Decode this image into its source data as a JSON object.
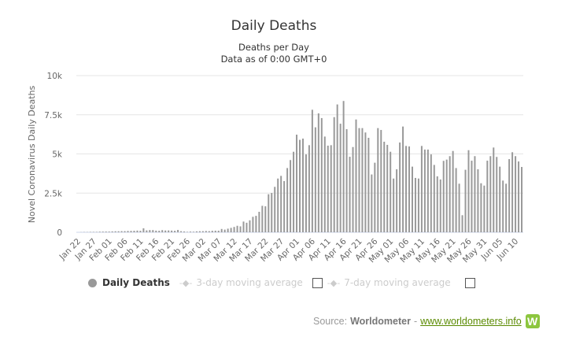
{
  "chart_data": {
    "type": "bar",
    "title": "Daily Deaths",
    "subtitle_lines": [
      "Deaths per Day",
      "Data as of 0:00 GMT+0"
    ],
    "ylabel": "Novel Coronavirus Daily Deaths",
    "xlabel": "",
    "ylim": [
      0,
      10000
    ],
    "y_tick_labels": [
      "0",
      "2.5k",
      "5k",
      "7.5k",
      "10k"
    ],
    "y_tick_values": [
      0,
      2500,
      5000,
      7500,
      10000
    ],
    "grid": true,
    "start_date": "Jan 22",
    "x_tick_every": 5,
    "x_tick_labels": [
      "Jan 22",
      "Jan 27",
      "Feb 01",
      "Feb 06",
      "Feb 11",
      "Feb 16",
      "Feb 21",
      "Feb 26",
      "Mar 02",
      "Mar 07",
      "Mar 12",
      "Mar 17",
      "Mar 22",
      "Mar 27",
      "Apr 01",
      "Apr 06",
      "Apr 11",
      "Apr 16",
      "Apr 21",
      "Apr 26",
      "May 01",
      "May 06",
      "May 11",
      "May 16",
      "May 21",
      "May 26",
      "May 31",
      "Jun 05",
      "Jun 10"
    ],
    "series": [
      {
        "name": "Daily Deaths",
        "color": "#999999",
        "values": [
          0,
          8,
          16,
          15,
          24,
          26,
          26,
          38,
          43,
          46,
          45,
          57,
          64,
          66,
          73,
          73,
          86,
          89,
          97,
          108,
          97,
          254,
          121,
          143,
          142,
          106,
          98,
          139,
          115,
          118,
          109,
          97,
          150,
          71,
          52,
          29,
          44,
          37,
          58,
          67,
          72,
          84,
          74,
          97,
          103,
          102,
          212,
          171,
          231,
          282,
          341,
          415,
          378,
          685,
          610,
          765,
          988,
          1050,
          1307,
          1690,
          1660,
          2430,
          2510,
          2900,
          3430,
          3600,
          3270,
          4100,
          4610,
          5140,
          6230,
          5900,
          5980,
          4970,
          5560,
          7820,
          6700,
          7590,
          7290,
          6110,
          5530,
          5560,
          7350,
          8160,
          6930,
          8380,
          6580,
          4820,
          5440,
          7200,
          6650,
          6650,
          6370,
          6030,
          3690,
          4440,
          6650,
          6530,
          5780,
          5580,
          5140,
          3430,
          4020,
          5730,
          6750,
          5510,
          5480,
          4190,
          3470,
          3430,
          5510,
          5280,
          5280,
          4970,
          4300,
          3570,
          3370,
          4560,
          4640,
          4860,
          5190,
          4100,
          3100,
          1090,
          3990,
          5240,
          4570,
          4860,
          4020,
          3130,
          2980,
          4570,
          4860,
          5410,
          4810,
          4190,
          3300,
          3100,
          4670,
          5110,
          4860,
          4520,
          4170
        ]
      }
    ],
    "legend": {
      "placement": "bottom",
      "items": [
        {
          "label": "Daily Deaths",
          "active": true
        },
        {
          "label": "3-day moving average",
          "active": false
        },
        {
          "label": "7-day moving average",
          "active": false
        }
      ]
    }
  },
  "source": {
    "prefix": "Source:",
    "name": "Worldometer",
    "separator": "-",
    "link": "www.worldometers.info",
    "logo_letter": "W",
    "logo_color": "#8dc63f"
  }
}
